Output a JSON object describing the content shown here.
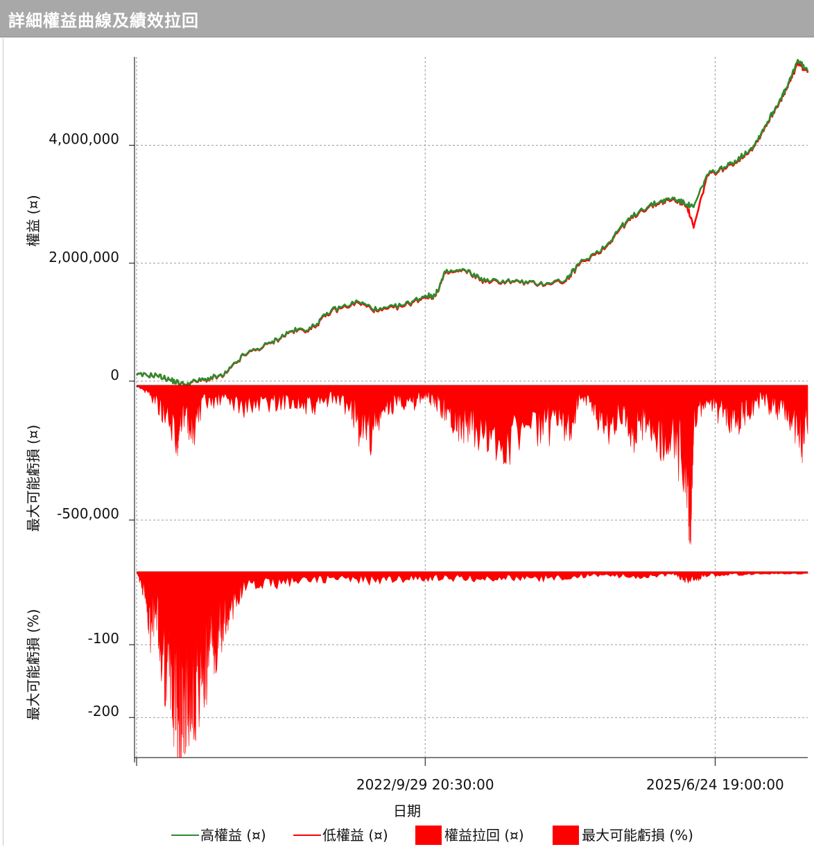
{
  "window": {
    "title": "詳細權益曲線及績效拉回"
  },
  "chart_data": [
    {
      "type": "line",
      "panel": "equity",
      "ylabel": "權益 (¤)",
      "yticks": [
        "4,000,000",
        "2,000,000",
        "0"
      ],
      "ytick_values": [
        4000000,
        2000000,
        0
      ],
      "ylim": [
        -60000,
        5500000
      ],
      "series": [
        {
          "name": "高權益 (¤)",
          "color": "#2e8b2e",
          "points": [
            [
              0,
              100000
            ],
            [
              0.03,
              100000
            ],
            [
              0.05,
              20000
            ],
            [
              0.07,
              -50000
            ],
            [
              0.1,
              30000
            ],
            [
              0.13,
              100000
            ],
            [
              0.16,
              450000
            ],
            [
              0.2,
              650000
            ],
            [
              0.23,
              850000
            ],
            [
              0.26,
              900000
            ],
            [
              0.29,
              1200000
            ],
            [
              0.33,
              1350000
            ],
            [
              0.36,
              1200000
            ],
            [
              0.4,
              1300000
            ],
            [
              0.43,
              1450000
            ],
            [
              0.445,
              1450000
            ],
            [
              0.46,
              1850000
            ],
            [
              0.49,
              1880000
            ],
            [
              0.52,
              1700000
            ],
            [
              0.56,
              1700000
            ],
            [
              0.6,
              1650000
            ],
            [
              0.64,
              1720000
            ],
            [
              0.66,
              2000000
            ],
            [
              0.7,
              2300000
            ],
            [
              0.72,
              2600000
            ],
            [
              0.75,
              2900000
            ],
            [
              0.78,
              3050000
            ],
            [
              0.8,
              3100000
            ],
            [
              0.82,
              3000000
            ],
            [
              0.83,
              2950000
            ],
            [
              0.85,
              3500000
            ],
            [
              0.88,
              3650000
            ],
            [
              0.9,
              3800000
            ],
            [
              0.92,
              4000000
            ],
            [
              0.94,
              4400000
            ],
            [
              0.96,
              4800000
            ],
            [
              0.97,
              5000000
            ],
            [
              0.985,
              5450000
            ],
            [
              1.0,
              5250000
            ]
          ]
        },
        {
          "name": "低權益 (¤)",
          "color": "#ff0000",
          "points": [
            [
              0,
              100000
            ],
            [
              0.03,
              100000
            ],
            [
              0.05,
              20000
            ],
            [
              0.07,
              -60000
            ],
            [
              0.1,
              20000
            ],
            [
              0.13,
              90000
            ],
            [
              0.16,
              440000
            ],
            [
              0.2,
              640000
            ],
            [
              0.23,
              840000
            ],
            [
              0.26,
              880000
            ],
            [
              0.29,
              1180000
            ],
            [
              0.33,
              1330000
            ],
            [
              0.36,
              1180000
            ],
            [
              0.4,
              1280000
            ],
            [
              0.43,
              1430000
            ],
            [
              0.445,
              1440000
            ],
            [
              0.46,
              1830000
            ],
            [
              0.49,
              1870000
            ],
            [
              0.52,
              1680000
            ],
            [
              0.56,
              1690000
            ],
            [
              0.6,
              1640000
            ],
            [
              0.64,
              1700000
            ],
            [
              0.66,
              1980000
            ],
            [
              0.7,
              2280000
            ],
            [
              0.72,
              2580000
            ],
            [
              0.75,
              2880000
            ],
            [
              0.78,
              3030000
            ],
            [
              0.8,
              3080000
            ],
            [
              0.82,
              2980000
            ],
            [
              0.83,
              2600000
            ],
            [
              0.85,
              3480000
            ],
            [
              0.88,
              3630000
            ],
            [
              0.9,
              3780000
            ],
            [
              0.92,
              3980000
            ],
            [
              0.94,
              4380000
            ],
            [
              0.96,
              4780000
            ],
            [
              0.97,
              4980000
            ],
            [
              0.985,
              5400000
            ],
            [
              1.0,
              5230000
            ]
          ]
        }
      ]
    },
    {
      "type": "area",
      "panel": "drawdown",
      "ylabel": "最大可能虧損 (¤)",
      "yticks": [
        "-500,000"
      ],
      "ytick_values": [
        -500000
      ],
      "ylim": [
        -690000,
        0
      ],
      "series": [
        {
          "name": "權益拉回 (¤)",
          "color": "#ff0000",
          "points": [
            [
              0,
              0
            ],
            [
              0.02,
              -40000
            ],
            [
              0.04,
              -120000
            ],
            [
              0.06,
              -250000
            ],
            [
              0.065,
              -130000
            ],
            [
              0.08,
              -220000
            ],
            [
              0.1,
              -90000
            ],
            [
              0.13,
              -60000
            ],
            [
              0.16,
              -100000
            ],
            [
              0.2,
              -80000
            ],
            [
              0.23,
              -70000
            ],
            [
              0.26,
              -110000
            ],
            [
              0.29,
              -60000
            ],
            [
              0.32,
              -100000
            ],
            [
              0.33,
              -180000
            ],
            [
              0.35,
              -220000
            ],
            [
              0.37,
              -120000
            ],
            [
              0.39,
              -60000
            ],
            [
              0.41,
              -90000
            ],
            [
              0.43,
              -40000
            ],
            [
              0.445,
              -80000
            ],
            [
              0.46,
              -110000
            ],
            [
              0.48,
              -170000
            ],
            [
              0.5,
              -200000
            ],
            [
              0.53,
              -280000
            ],
            [
              0.56,
              -240000
            ],
            [
              0.6,
              -180000
            ],
            [
              0.63,
              -210000
            ],
            [
              0.65,
              -160000
            ],
            [
              0.66,
              -40000
            ],
            [
              0.68,
              -120000
            ],
            [
              0.7,
              -190000
            ],
            [
              0.72,
              -140000
            ],
            [
              0.74,
              -220000
            ],
            [
              0.76,
              -150000
            ],
            [
              0.78,
              -260000
            ],
            [
              0.8,
              -240000
            ],
            [
              0.82,
              -400000
            ],
            [
              0.825,
              -560000
            ],
            [
              0.83,
              -180000
            ],
            [
              0.85,
              -60000
            ],
            [
              0.87,
              -130000
            ],
            [
              0.89,
              -180000
            ],
            [
              0.91,
              -110000
            ],
            [
              0.93,
              -70000
            ],
            [
              0.95,
              -100000
            ],
            [
              0.97,
              -120000
            ],
            [
              0.99,
              -250000
            ],
            [
              1.0,
              -150000
            ]
          ]
        }
      ]
    },
    {
      "type": "area",
      "panel": "drawdown_pct",
      "ylabel": "最大可能虧損 (%)",
      "yticks": [
        "-100",
        "-200"
      ],
      "ytick_values": [
        -100,
        -200
      ],
      "ylim": [
        -255,
        0
      ],
      "series": [
        {
          "name": "最大可能虧損 (%)",
          "color": "#ff0000",
          "points": [
            [
              0,
              0
            ],
            [
              0.01,
              -30
            ],
            [
              0.02,
              -90
            ],
            [
              0.03,
              -80
            ],
            [
              0.04,
              -140
            ],
            [
              0.05,
              -180
            ],
            [
              0.06,
              -220
            ],
            [
              0.065,
              -250
            ],
            [
              0.07,
              -200
            ],
            [
              0.08,
              -210
            ],
            [
              0.09,
              -190
            ],
            [
              0.1,
              -170
            ],
            [
              0.11,
              -120
            ],
            [
              0.12,
              -110
            ],
            [
              0.13,
              -90
            ],
            [
              0.14,
              -60
            ],
            [
              0.16,
              -25
            ],
            [
              0.2,
              -20
            ],
            [
              0.25,
              -15
            ],
            [
              0.3,
              -12
            ],
            [
              0.35,
              -15
            ],
            [
              0.4,
              -12
            ],
            [
              0.45,
              -10
            ],
            [
              0.5,
              -12
            ],
            [
              0.55,
              -10
            ],
            [
              0.6,
              -12
            ],
            [
              0.65,
              -8
            ],
            [
              0.7,
              -6
            ],
            [
              0.75,
              -8
            ],
            [
              0.8,
              -5
            ],
            [
              0.825,
              -15
            ],
            [
              0.85,
              -6
            ],
            [
              0.9,
              -4
            ],
            [
              0.95,
              -3
            ],
            [
              1.0,
              -4
            ]
          ]
        }
      ]
    }
  ],
  "x_axis": {
    "xlabel": "日期",
    "ticks": [
      "2022/9/29 20:30:00",
      "2025/6/24 19:00:00"
    ],
    "tick_positions": [
      0.43,
      0.862
    ]
  },
  "legend": {
    "position": "bottom",
    "items": [
      {
        "label": "高權益 (¤)",
        "color": "#2e8b2e",
        "kind": "line"
      },
      {
        "label": "低權益 (¤)",
        "color": "#ff0000",
        "kind": "line"
      },
      {
        "label": "權益拉回 (¤)",
        "color": "#ff0000",
        "kind": "box"
      },
      {
        "label": "最大可能虧損 (%)",
        "color": "#ff0000",
        "kind": "box"
      }
    ]
  },
  "grid": true
}
